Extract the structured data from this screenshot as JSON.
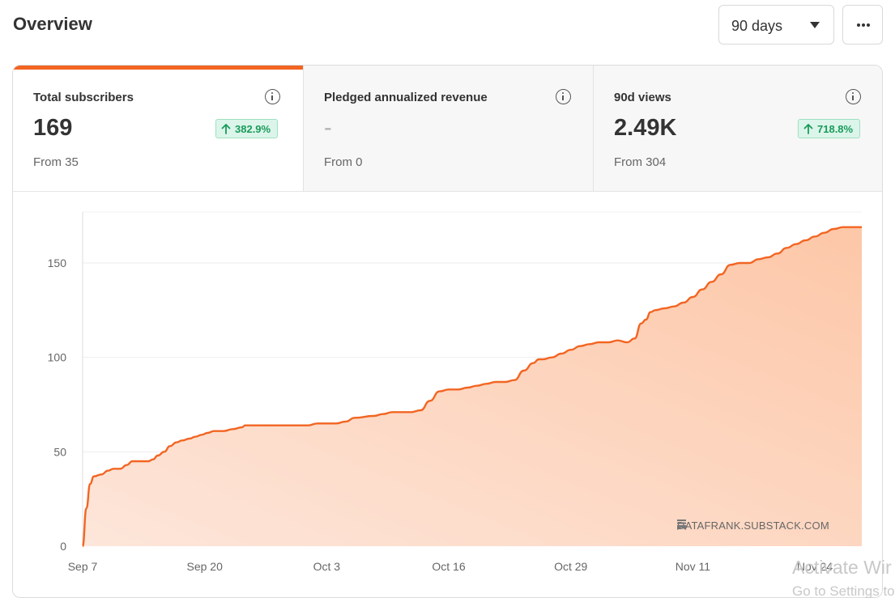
{
  "header": {
    "title": "Overview",
    "range_value": "90 days",
    "more_icon": "more-horizontal-icon"
  },
  "metrics": [
    {
      "label": "Total subscribers",
      "value": "169",
      "change": "382.9%",
      "from": "From 35",
      "active": true
    },
    {
      "label": "Pledged annualized revenue",
      "value": "-",
      "change": "",
      "from": "From 0",
      "active": false
    },
    {
      "label": "90d views",
      "value": "2.49K",
      "change": "718.8%",
      "from": "From 304",
      "active": false
    }
  ],
  "colors": {
    "accent": "#f26522",
    "badge_bg": "#dcf5ea",
    "badge_text": "#1a9b5b"
  },
  "watermark": "DATAFRANK.SUBSTACK.COM",
  "chart_data": {
    "type": "area",
    "title": "",
    "xlabel": "",
    "ylabel": "",
    "x_tick_labels": [
      "Sep 7",
      "Sep 20",
      "Oct 3",
      "Oct 16",
      "Oct 29",
      "Nov 11",
      "Nov 24"
    ],
    "y_ticks": [
      0,
      50,
      100,
      150
    ],
    "ylim": [
      0,
      177
    ],
    "x_range_days": [
      0,
      83
    ],
    "grid": true,
    "series": [
      {
        "x": [
          0,
          0.4,
          0.8,
          1.2,
          2,
          2.7,
          3.3,
          4,
          4.7,
          5.3,
          6,
          7,
          7.5,
          8,
          8.7,
          9.3,
          10,
          10.6,
          11.4,
          12,
          12.7,
          13.3,
          14,
          15,
          16,
          17,
          17.3,
          18,
          20,
          22,
          24,
          25,
          26,
          27,
          28,
          29,
          31,
          32,
          33,
          34,
          35,
          36,
          37,
          38,
          39,
          40,
          41,
          42,
          43,
          44,
          45,
          46,
          47,
          48,
          48.6,
          49,
          50,
          51,
          52,
          53,
          54,
          55,
          56,
          57,
          58,
          58.8,
          59.5,
          60,
          60.5,
          61,
          62,
          63,
          64,
          65,
          66,
          67,
          68,
          69,
          70,
          71,
          72,
          73,
          74,
          75,
          76,
          77,
          78,
          79,
          80,
          81,
          82,
          83
        ],
        "y": [
          0,
          20,
          33,
          37,
          38,
          40,
          41,
          41,
          43,
          45,
          45,
          45,
          46,
          48,
          50,
          53,
          55,
          56,
          57,
          58,
          59,
          60,
          61,
          61,
          62,
          63,
          64,
          64,
          64,
          64,
          64,
          65,
          65,
          65,
          66,
          68,
          69,
          70,
          71,
          71,
          71,
          72,
          77,
          82,
          83,
          83,
          84,
          85,
          86,
          87,
          87,
          88,
          93,
          97,
          99,
          99,
          100,
          102,
          104,
          106,
          107,
          108,
          108,
          109,
          108,
          110,
          118,
          120,
          124,
          125,
          126,
          127,
          129,
          132,
          136,
          140,
          144,
          149,
          150,
          150,
          152,
          153,
          155,
          158,
          160,
          162,
          164,
          166,
          168,
          169,
          169,
          169
        ]
      }
    ]
  },
  "overlay": {
    "activate": "Activate Wir",
    "settings": "Go to Settings to"
  }
}
